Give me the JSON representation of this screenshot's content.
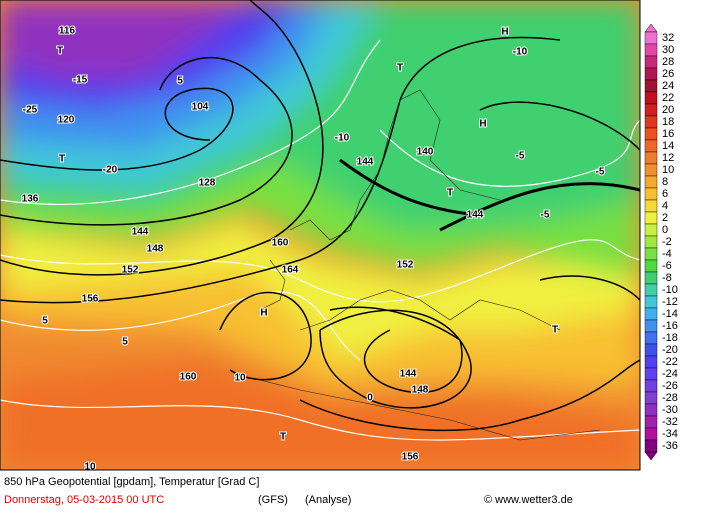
{
  "caption": {
    "title": "850 hPa Geopotential [gpdam], Temperatur [Grad C]",
    "date": "Donnerstag, 05-03-2015  00 UTC",
    "model": "(GFS)",
    "run": "(Analyse)",
    "source": "© www.wetter3.de"
  },
  "colorbar": [
    {
      "value": 32,
      "color": "#f070d0"
    },
    {
      "value": 30,
      "color": "#e048a8"
    },
    {
      "value": 28,
      "color": "#c82878"
    },
    {
      "value": 26,
      "color": "#b01850"
    },
    {
      "value": 24,
      "color": "#a01030"
    },
    {
      "value": 22,
      "color": "#c01020"
    },
    {
      "value": 20,
      "color": "#d02020"
    },
    {
      "value": 18,
      "color": "#e03820"
    },
    {
      "value": 16,
      "color": "#ee5020"
    },
    {
      "value": 14,
      "color": "#f06828"
    },
    {
      "value": 12,
      "color": "#f07c28"
    },
    {
      "value": 10,
      "color": "#f09030"
    },
    {
      "value": 8,
      "color": "#f4a830"
    },
    {
      "value": 6,
      "color": "#f8c030"
    },
    {
      "value": 4,
      "color": "#f8d838"
    },
    {
      "value": 2,
      "color": "#f0f040"
    },
    {
      "value": 0,
      "color": "#c8f040"
    },
    {
      "value": -2,
      "color": "#a0e840"
    },
    {
      "value": -4,
      "color": "#78e040"
    },
    {
      "value": -6,
      "color": "#50d840"
    },
    {
      "value": -8,
      "color": "#40d070"
    },
    {
      "value": -10,
      "color": "#40d0a8"
    },
    {
      "value": -12,
      "color": "#40c8d8"
    },
    {
      "value": -14,
      "color": "#40b0f0"
    },
    {
      "value": -16,
      "color": "#4090f0"
    },
    {
      "value": -18,
      "color": "#4070f0"
    },
    {
      "value": -20,
      "color": "#4050f0"
    },
    {
      "value": -22,
      "color": "#5040f0"
    },
    {
      "value": -24,
      "color": "#6040f0"
    },
    {
      "value": -26,
      "color": "#7040e0"
    },
    {
      "value": -28,
      "color": "#8040d0"
    },
    {
      "value": -30,
      "color": "#9030c0"
    },
    {
      "value": -32,
      "color": "#a020b0"
    },
    {
      "value": -34,
      "color": "#b010a0"
    },
    {
      "value": -36,
      "color": "#800080"
    }
  ],
  "map_labels": [
    "144",
    "144",
    "144",
    "144",
    "148",
    "148",
    "152",
    "152",
    "156",
    "156",
    "160",
    "160",
    "164",
    "140",
    "136",
    "116",
    "120",
    "104",
    "128",
    "T",
    "T",
    "T",
    "T",
    "T",
    "T",
    "H",
    "H",
    "H",
    "-5",
    "-5",
    "-5",
    "-10",
    "-10",
    "-15",
    "-20",
    "-25",
    "5",
    "5",
    "5",
    "10",
    "10",
    "0"
  ]
}
